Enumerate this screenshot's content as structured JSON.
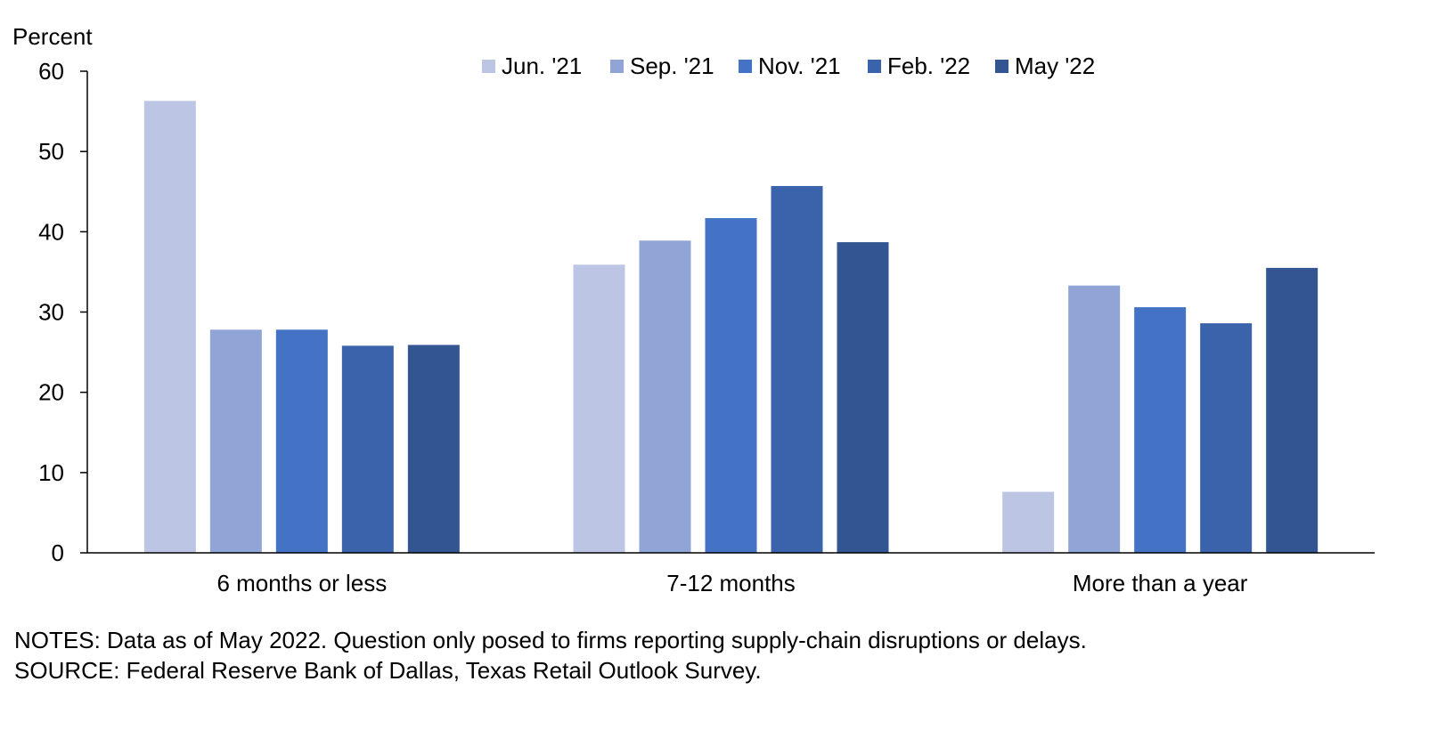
{
  "chart_data": {
    "type": "bar",
    "title": "",
    "ylabel": "Percent",
    "xlabel": "",
    "ylim": [
      0,
      60
    ],
    "yticks": [
      0,
      10,
      20,
      30,
      40,
      50,
      60
    ],
    "grid": false,
    "legend_position": "top-right",
    "categories": [
      "6 months or less",
      "7-12 months",
      "More than a year"
    ],
    "series": [
      {
        "name": "Jun. '21",
        "color": "#BCC6E4",
        "values": [
          56.3,
          35.9,
          7.6
        ]
      },
      {
        "name": "Sep. '21",
        "color": "#90A4D6",
        "values": [
          27.8,
          38.9,
          33.3
        ]
      },
      {
        "name": "Nov. '21",
        "color": "#4472C4",
        "values": [
          27.8,
          41.7,
          30.6
        ]
      },
      {
        "name": "Feb. '22",
        "color": "#3A63AC",
        "values": [
          25.8,
          45.7,
          28.6
        ]
      },
      {
        "name": "May '22",
        "color": "#335591",
        "values": [
          25.9,
          38.7,
          35.5
        ]
      }
    ]
  },
  "notes": "NOTES: Data as of May 2022. Question only posed to firms reporting supply-chain disruptions or delays.",
  "source": "SOURCE: Federal Reserve Bank of Dallas, Texas Retail Outlook Survey."
}
